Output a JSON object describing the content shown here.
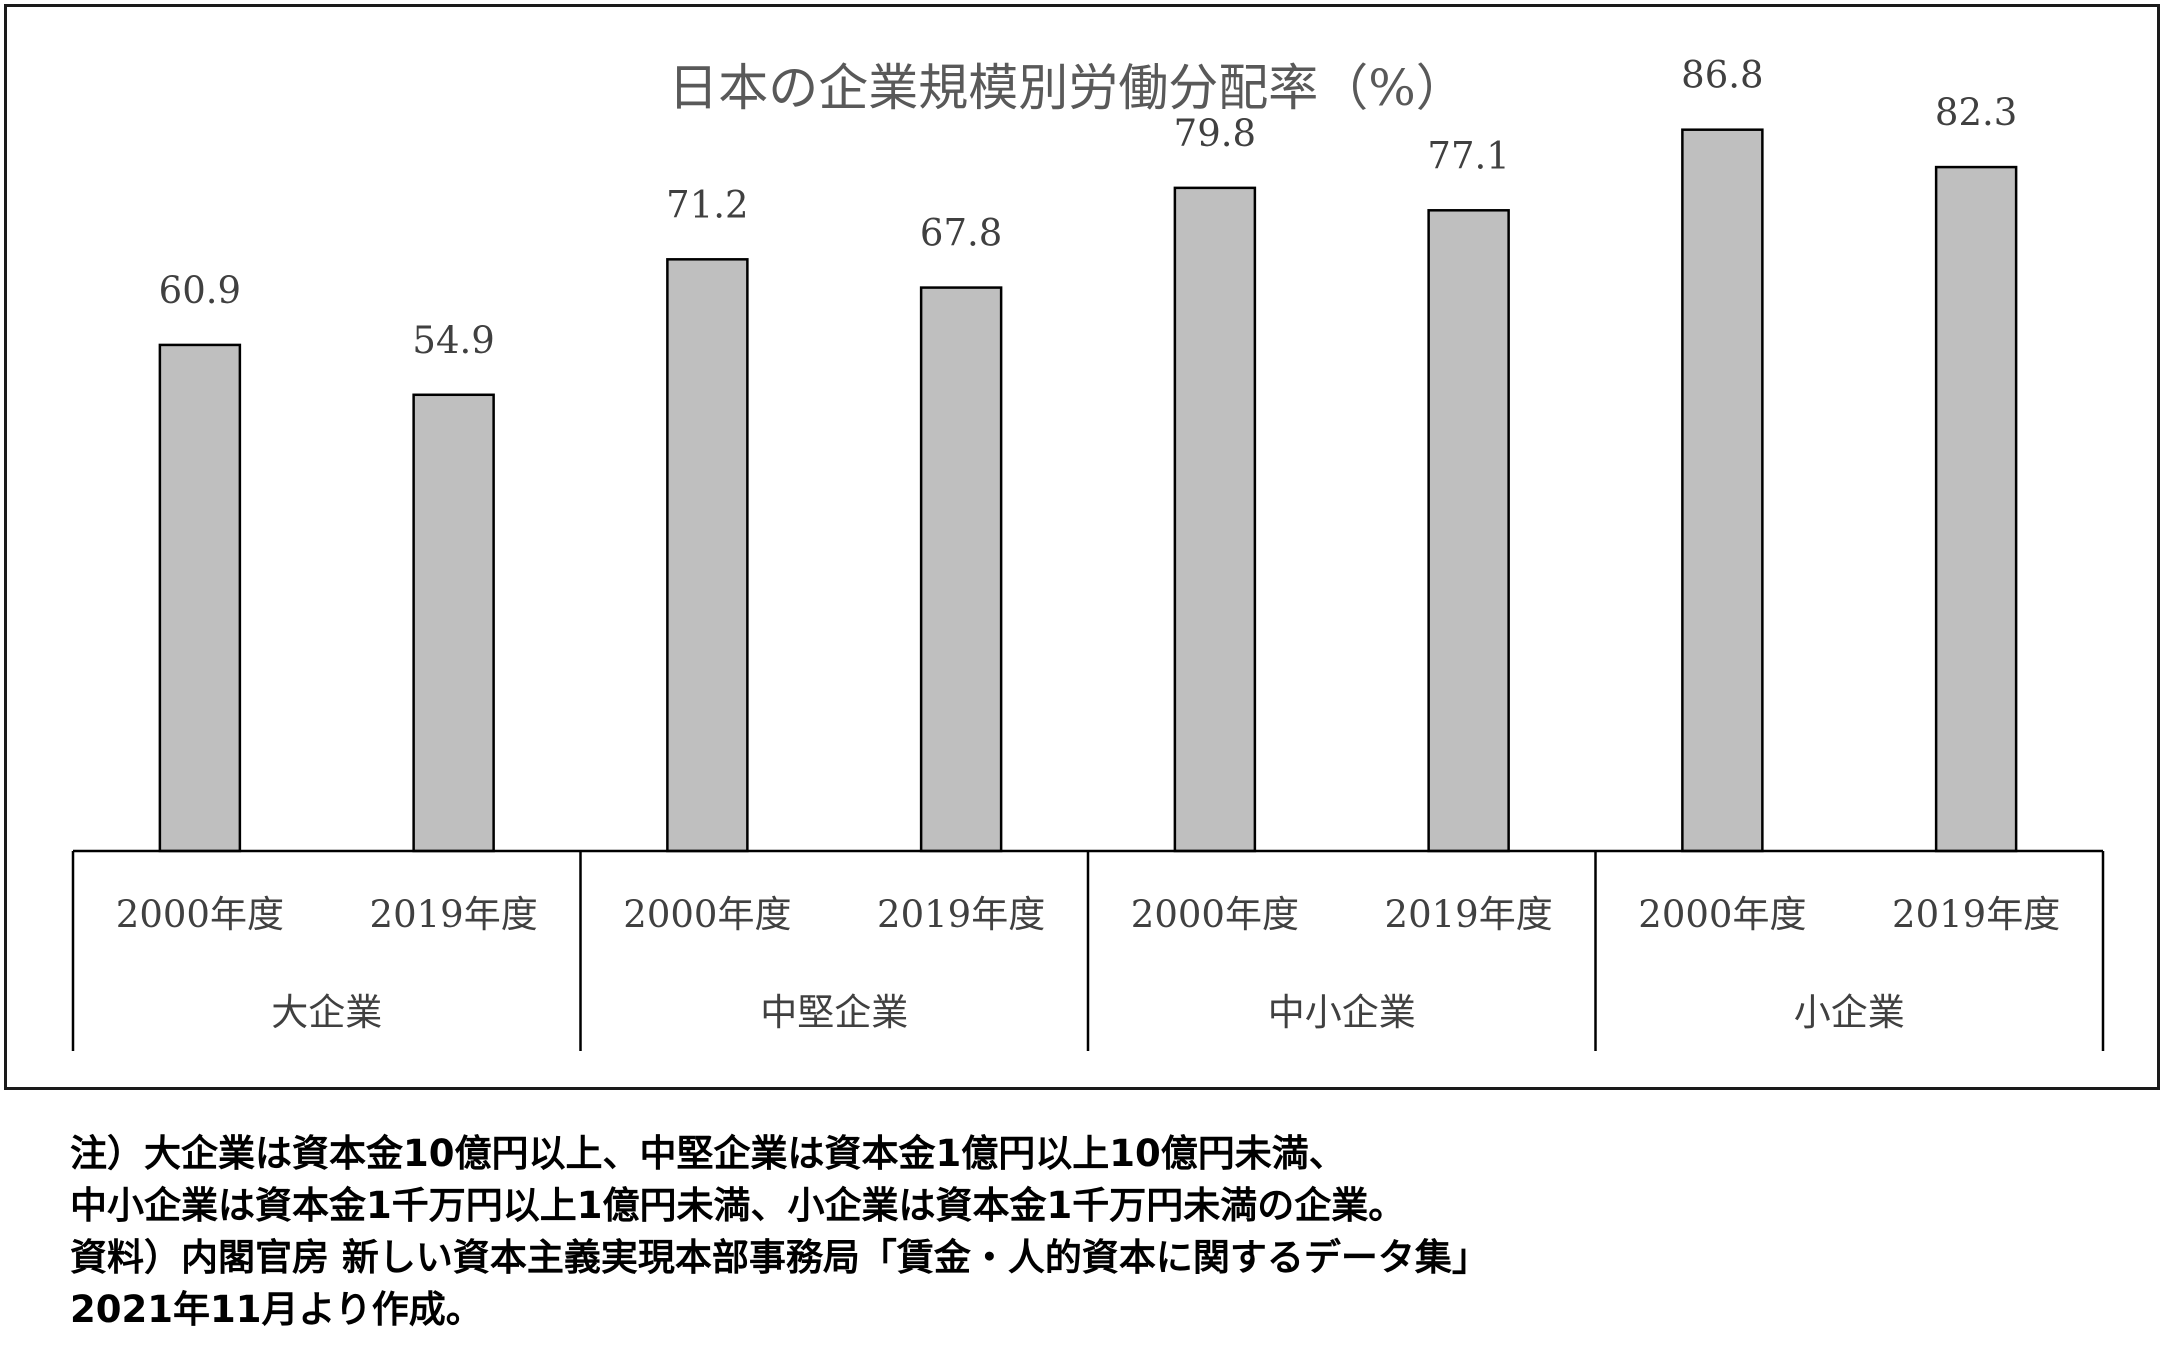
{
  "chart_data": {
    "type": "bar",
    "title": "日本の企業規模別労働分配率（%）",
    "groups": [
      {
        "name": "大企業",
        "categories": [
          "2000年度",
          "2019年度"
        ],
        "values": [
          60.9,
          54.9
        ]
      },
      {
        "name": "中堅企業",
        "categories": [
          "2000年度",
          "2019年度"
        ],
        "values": [
          71.2,
          67.8
        ]
      },
      {
        "name": "中小企業",
        "categories": [
          "2000年度",
          "2019年度"
        ],
        "values": [
          79.8,
          77.1
        ]
      },
      {
        "name": "小企業",
        "categories": [
          "2000年度",
          "2019年度"
        ],
        "values": [
          86.8,
          82.3
        ]
      }
    ],
    "ylim": [
      0,
      100
    ],
    "grid": false,
    "bar_color": "#bfbfbf",
    "bar_stroke": "#000000"
  },
  "notes": [
    "注）大企業は資本金10億円以上、中堅企業は資本金1億円以上10億円未満、",
    "中小企業は資本金1千万円以上1億円未満、小企業は資本金1千万円未満の企業。",
    "資料）内閣官房 新しい資本主義実現本部事務局「賃金・人的資本に関するデータ集」",
    "2021年11月より作成。"
  ]
}
